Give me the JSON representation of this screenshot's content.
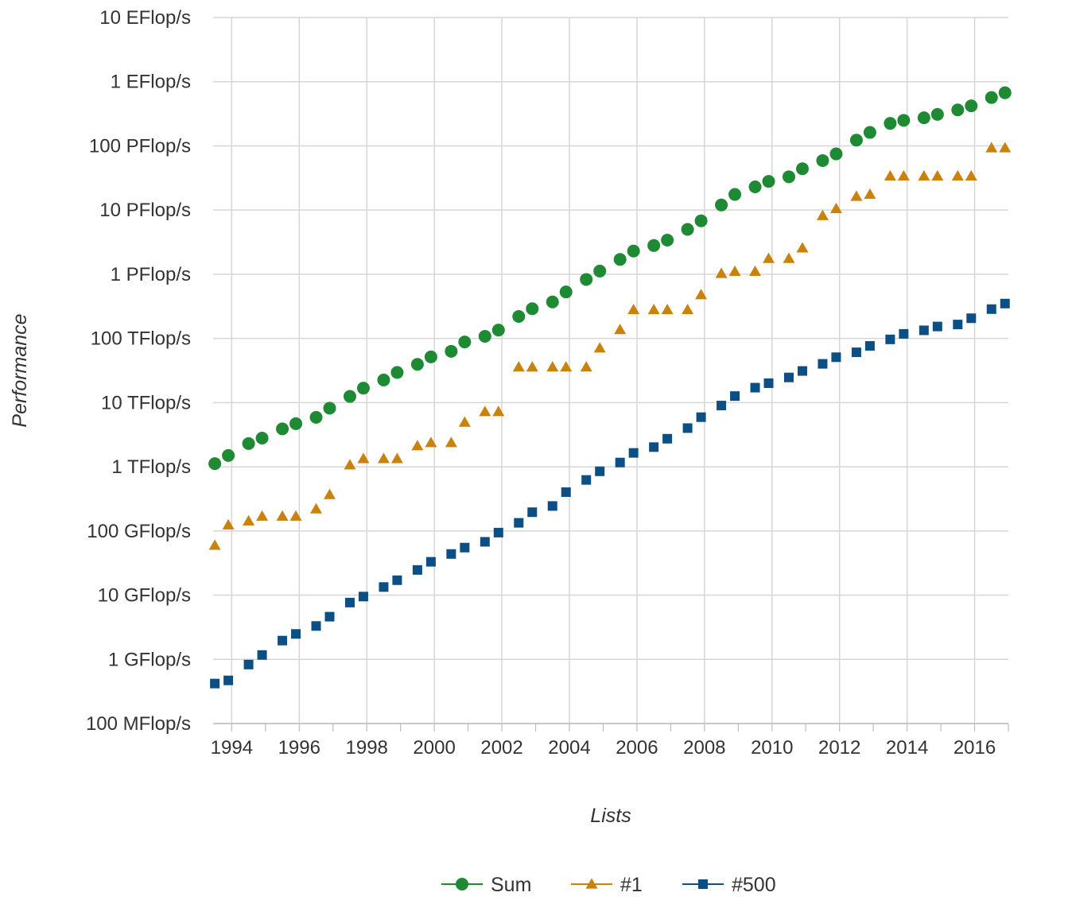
{
  "chart_data": {
    "type": "scatter",
    "xlabel": "Lists",
    "ylabel": "Performance",
    "yscale": "log",
    "ylim_gflops": [
      0.1,
      10000000000
    ],
    "xlim": [
      1993.45,
      2017.0
    ],
    "x_ticks": [
      "1994",
      "1996",
      "1998",
      "2000",
      "2002",
      "2004",
      "2006",
      "2008",
      "2010",
      "2012",
      "2014",
      "2016"
    ],
    "y_ticks": [
      {
        "value_gflops": 0.1,
        "label": "100 MFlop/s"
      },
      {
        "value_gflops": 1,
        "label": "1 GFlop/s"
      },
      {
        "value_gflops": 10,
        "label": "10 GFlop/s"
      },
      {
        "value_gflops": 100,
        "label": "100 GFlop/s"
      },
      {
        "value_gflops": 1000,
        "label": "1 TFlop/s"
      },
      {
        "value_gflops": 10000,
        "label": "10 TFlop/s"
      },
      {
        "value_gflops": 100000,
        "label": "100 TFlop/s"
      },
      {
        "value_gflops": 1000000,
        "label": "1 PFlop/s"
      },
      {
        "value_gflops": 10000000,
        "label": "10 PFlop/s"
      },
      {
        "value_gflops": 100000000,
        "label": "100 PFlop/s"
      },
      {
        "value_gflops": 1000000000,
        "label": "1 EFlop/s"
      },
      {
        "value_gflops": 10000000000,
        "label": "10 EFlop/s"
      }
    ],
    "grid": true,
    "legend_position": "bottom",
    "x": [
      1993.5,
      1993.9,
      1994.5,
      1994.9,
      1995.5,
      1995.9,
      1996.5,
      1996.9,
      1997.5,
      1997.9,
      1998.5,
      1998.9,
      1999.5,
      1999.9,
      2000.5,
      2000.9,
      2001.5,
      2001.9,
      2002.5,
      2002.9,
      2003.5,
      2003.9,
      2004.5,
      2004.9,
      2005.5,
      2005.9,
      2006.5,
      2006.9,
      2007.5,
      2007.9,
      2008.5,
      2008.9,
      2009.5,
      2009.9,
      2010.5,
      2010.9,
      2011.5,
      2011.9,
      2012.5,
      2012.9,
      2013.5,
      2013.9,
      2014.5,
      2014.9,
      2015.5,
      2015.9,
      2016.5,
      2016.9
    ],
    "series": [
      {
        "name": "Sum",
        "color": "#1e8a34",
        "marker": "circle",
        "values": [
          1120,
          1500,
          2300,
          2800,
          3900,
          4700,
          5900,
          8200,
          12500,
          16800,
          22500,
          29500,
          39500,
          51500,
          63000,
          88000,
          108000,
          135000,
          220000,
          290000,
          370000,
          530000,
          830000,
          1120000,
          1700000,
          2300000,
          2800000,
          3400000,
          5000000,
          6800000,
          12000000,
          17500000,
          23000000,
          28000000,
          33000000,
          44000000,
          59000000,
          75000000,
          123000000,
          162000000,
          224000000,
          250000000,
          274000000,
          309000000,
          363000000,
          420000000,
          566000000,
          672000000
        ]
      },
      {
        "name": "#1",
        "color": "#c9820c",
        "marker": "triangle",
        "values": [
          59.7,
          124,
          143,
          170,
          170,
          170,
          220,
          368,
          1068,
          1338,
          1338,
          1338,
          2121,
          2380,
          2380,
          4938,
          7226,
          7226,
          35860,
          35860,
          35860,
          35860,
          35860,
          70720,
          136800,
          280600,
          280600,
          280600,
          280600,
          478200,
          1026000,
          1105000,
          1105000,
          1759000,
          1759000,
          2566000,
          8162000,
          10510000,
          16320000,
          17590000,
          33860000,
          33860000,
          33860000,
          33860000,
          33860000,
          33860000,
          93010000,
          93010000
        ]
      },
      {
        "name": "#500",
        "color": "#0c4f85",
        "marker": "square",
        "values": [
          0.42,
          0.47,
          0.83,
          1.17,
          1.96,
          2.49,
          3.31,
          4.62,
          7.67,
          9.51,
          13.4,
          17.1,
          24.7,
          33.1,
          43.8,
          55.1,
          67.8,
          94.3,
          134,
          196,
          245,
          403,
          624,
          850,
          1166,
          1646,
          2026,
          2737,
          4005,
          5929,
          9000,
          12640,
          17100,
          20050,
          24670,
          31120,
          40190,
          50940,
          60820,
          76500,
          96620,
          117800,
          133700,
          153400,
          164800,
          206300,
          286100,
          349300
        ]
      }
    ]
  }
}
